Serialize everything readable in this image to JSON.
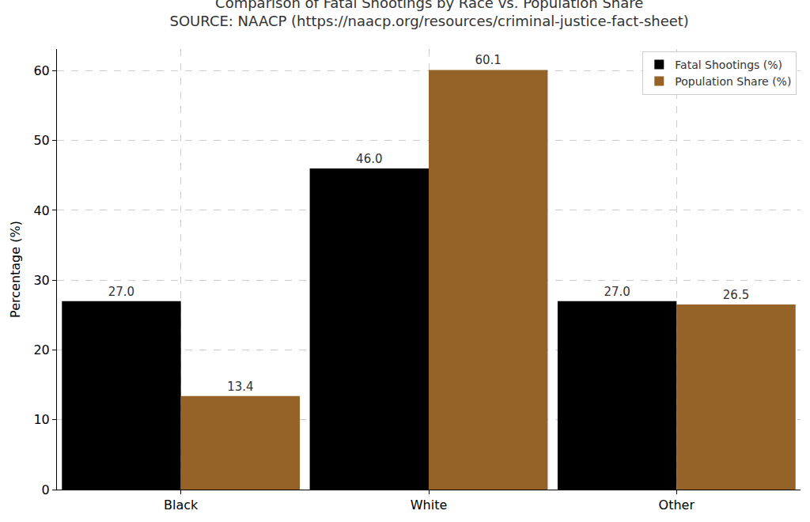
{
  "chart_data": {
    "type": "bar",
    "title": "Comparison of Fatal Shootings by Race vs. Population Share",
    "subtitle": "SOURCE: NAACP (https://naacp.org/resources/criminal-justice-fact-sheet)",
    "y_label": "Percentage (%)",
    "categories": [
      "Black",
      "White",
      "Other"
    ],
    "series": [
      {
        "name": "Fatal Shootings (%)",
        "color": "#000000",
        "values": [
          27,
          46,
          27
        ],
        "value_labels": [
          "27.0",
          "46.0",
          "27.0"
        ]
      },
      {
        "name": "Population Share (%)",
        "color": "#956328",
        "values": [
          13.4,
          60.1,
          26.5
        ],
        "value_labels": [
          "13.4",
          "60.1",
          "26.5"
        ]
      }
    ],
    "ylim": [
      0,
      63.1
    ],
    "yticks": [
      0,
      10,
      20,
      30,
      40,
      50,
      60
    ],
    "grid": true,
    "legend": "upper right",
    "data_labels": true
  }
}
